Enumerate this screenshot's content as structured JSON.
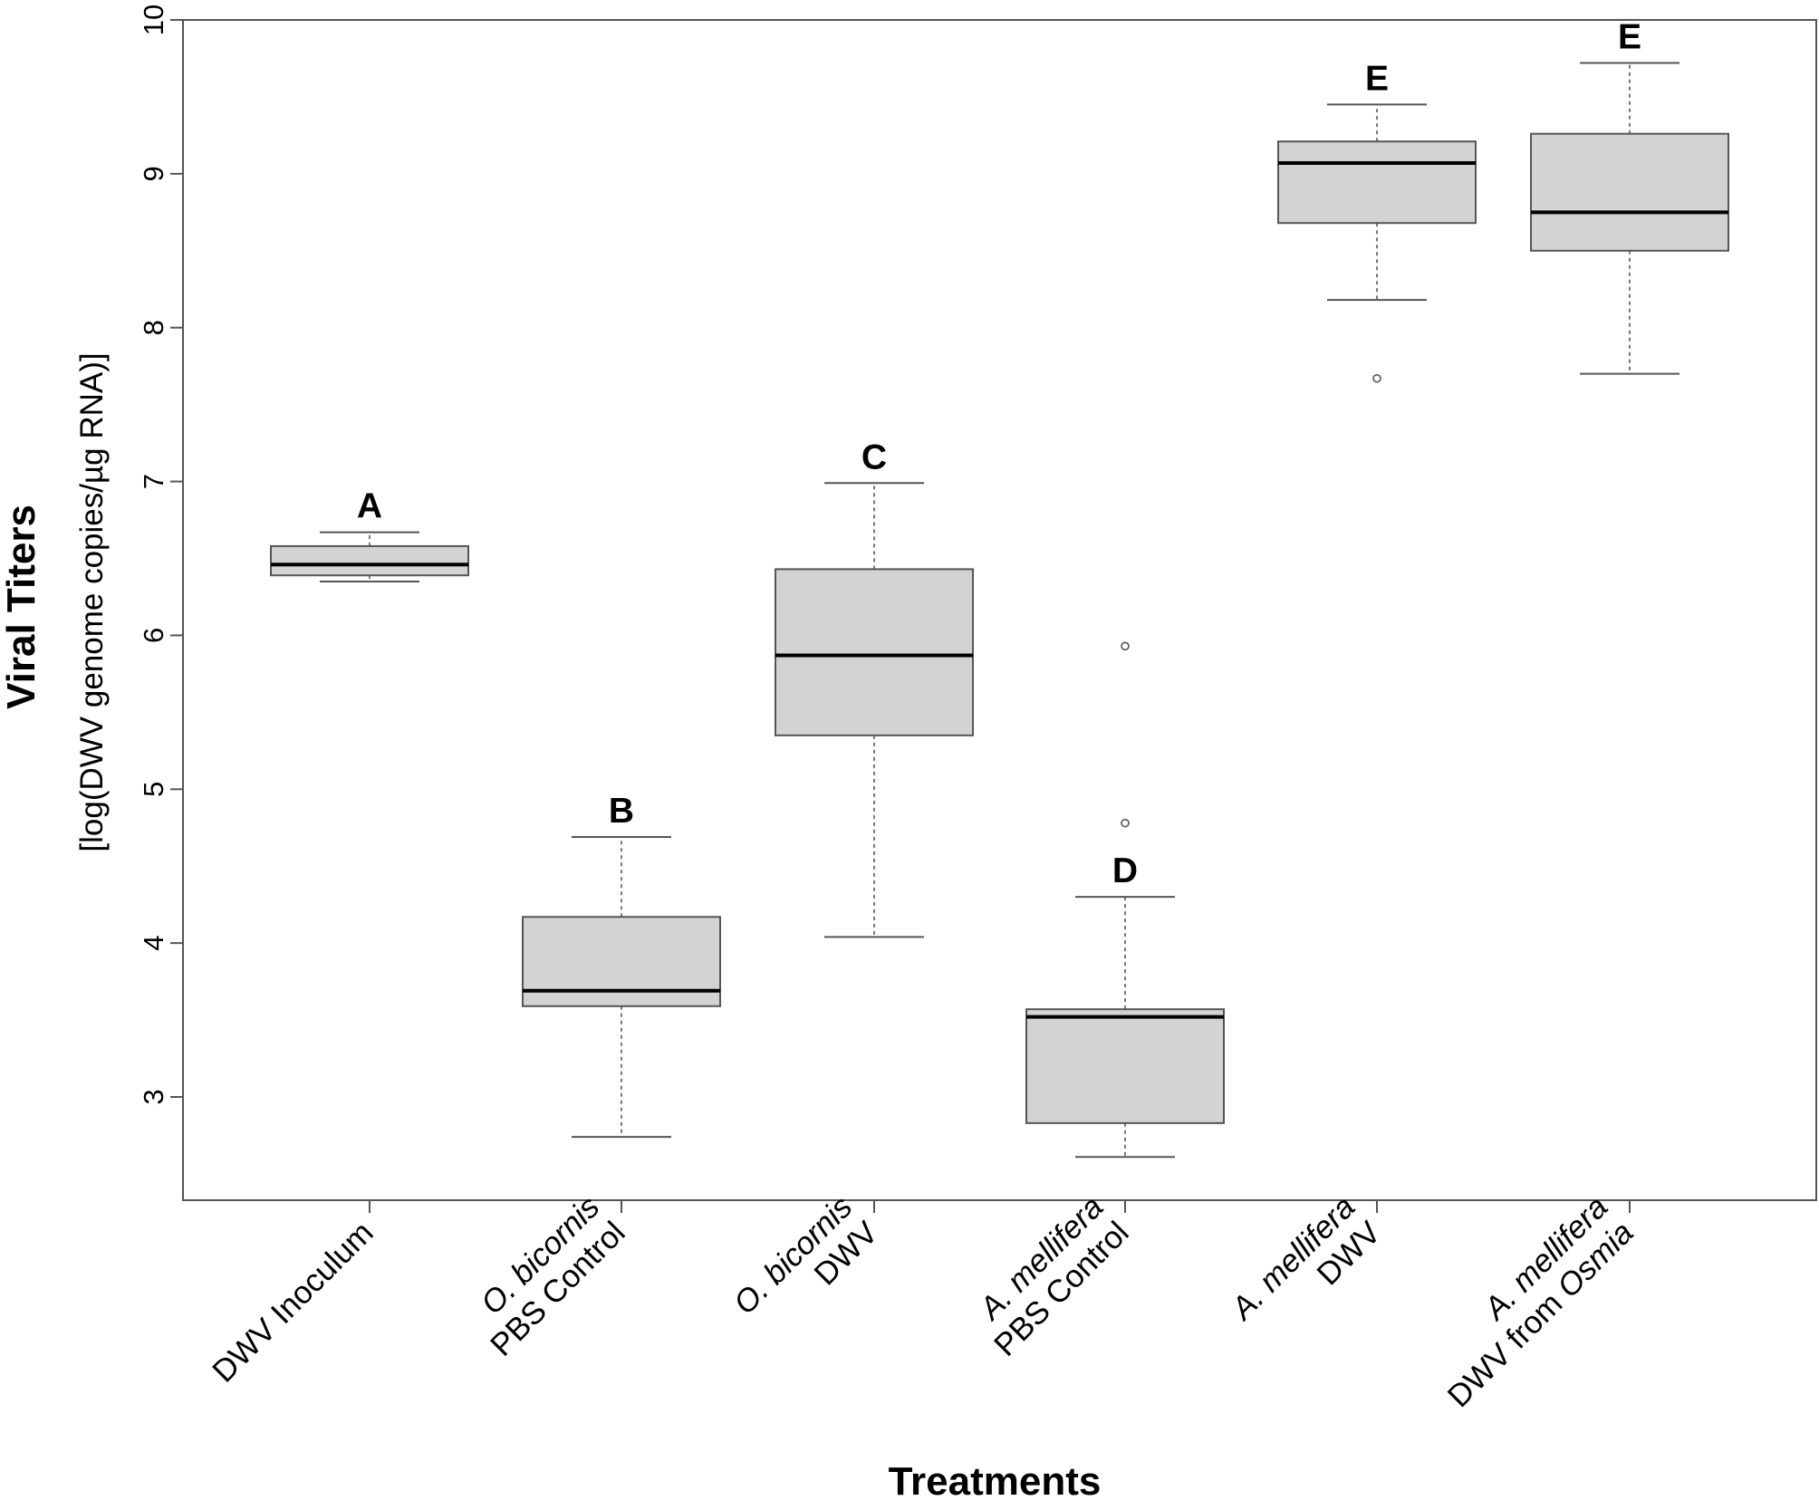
{
  "chart_data": {
    "type": "boxplot",
    "ylabel_main": "Viral Titers",
    "ylabel_sub": "[log(DWV genome copies/µg RNA)]",
    "xlabel": "Treatments",
    "ylim": [
      2.35,
      10
    ],
    "yticks": [
      3,
      4,
      5,
      6,
      7,
      8,
      9,
      10
    ],
    "categories": [
      {
        "lines": [
          {
            "italic": "",
            "normal": "DWV Inoculum"
          }
        ],
        "letter": "A",
        "whisker_low": 6.35,
        "q1": 6.39,
        "median": 6.46,
        "q3": 6.58,
        "whisker_high": 6.67,
        "outliers": []
      },
      {
        "lines": [
          {
            "italic": "O. bicornis",
            "normal": ""
          },
          {
            "italic": "",
            "normal": "PBS Control"
          }
        ],
        "letter": "B",
        "whisker_low": 2.74,
        "q1": 3.59,
        "median": 3.69,
        "q3": 4.17,
        "whisker_high": 4.69,
        "outliers": []
      },
      {
        "lines": [
          {
            "italic": "O. bicornis",
            "normal": ""
          },
          {
            "italic": "",
            "normal": "DWV"
          }
        ],
        "letter": "C",
        "whisker_low": 4.04,
        "q1": 5.35,
        "median": 5.87,
        "q3": 6.43,
        "whisker_high": 6.99,
        "outliers": []
      },
      {
        "lines": [
          {
            "italic": "A. mellifera",
            "normal": ""
          },
          {
            "italic": "",
            "normal": "PBS Control"
          }
        ],
        "letter": "D",
        "whisker_low": 2.61,
        "q1": 2.83,
        "median": 3.52,
        "q3": 3.57,
        "whisker_high": 4.3,
        "outliers": [
          4.78,
          5.93
        ]
      },
      {
        "lines": [
          {
            "italic": "A. mellifera",
            "normal": ""
          },
          {
            "italic": "",
            "normal": "DWV"
          }
        ],
        "letter": "E",
        "whisker_low": 8.18,
        "q1": 8.68,
        "median": 9.07,
        "q3": 9.21,
        "whisker_high": 9.45,
        "outliers": [
          7.67
        ]
      },
      {
        "lines": [
          {
            "italic": "A. mellifera",
            "normal": ""
          },
          {
            "italic": "",
            "normal": "DWV from "
          }
        ],
        "letter": "E",
        "line2_italic_suffix": "Osmia",
        "whisker_low": 7.7,
        "q1": 8.5,
        "median": 8.75,
        "q3": 9.26,
        "whisker_high": 9.72,
        "outliers": []
      }
    ],
    "box_fill": "#d3d3d3",
    "axis_color": "#555555",
    "median_color": "#000000"
  }
}
